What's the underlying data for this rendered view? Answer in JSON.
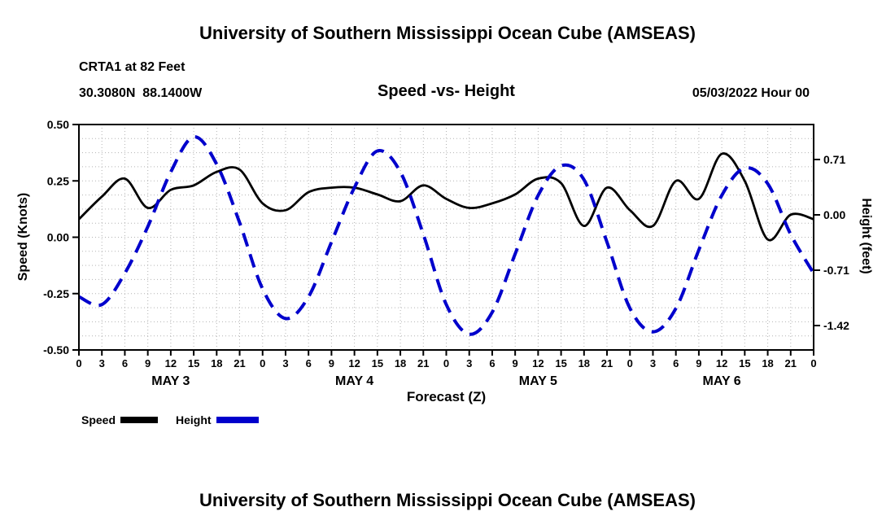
{
  "header": {
    "title": "University of Southern Mississippi Ocean Cube (AMSEAS)",
    "station": "CRTA1 at 82 Feet",
    "coordinates": "30.3080N  88.1400W",
    "subtitle": "Speed -vs- Height",
    "datetime": "05/03/2022 Hour 00"
  },
  "footer": {
    "title": "University of Southern Mississippi Ocean Cube (AMSEAS)"
  },
  "legend": {
    "items": [
      {
        "label": "Speed",
        "color": "#000000"
      },
      {
        "label": "Height",
        "color": "#0000cc"
      }
    ]
  },
  "chart_data": {
    "type": "line",
    "title": "Speed -vs- Height",
    "xlabel": "Forecast (Z)",
    "x_hours": [
      0,
      3,
      6,
      9,
      12,
      15,
      18,
      21,
      24,
      27,
      30,
      33,
      36,
      39,
      42,
      45,
      48,
      51,
      54,
      57,
      60,
      63,
      66,
      69,
      72,
      75,
      78,
      81,
      84,
      87,
      90,
      93,
      96
    ],
    "x_tick_labels": [
      "0",
      "3",
      "6",
      "9",
      "12",
      "15",
      "18",
      "21",
      "0",
      "3",
      "6",
      "9",
      "12",
      "15",
      "18",
      "21",
      "0",
      "3",
      "6",
      "9",
      "12",
      "15",
      "18",
      "21",
      "0",
      "3",
      "6",
      "9",
      "12",
      "15",
      "18",
      "21",
      "0"
    ],
    "day_labels": [
      "MAY 3",
      "MAY 4",
      "MAY 5",
      "MAY 6"
    ],
    "day_center_hours": [
      12,
      36,
      60,
      84
    ],
    "left_axis": {
      "label": "Speed (Knots)",
      "ticks": [
        "0.50",
        "0.25",
        "0.00",
        "-0.25",
        "-0.50"
      ],
      "range": [
        -0.5,
        0.5
      ]
    },
    "right_axis": {
      "label": "Height (feet)",
      "ticks": [
        "0.71",
        "0.00",
        "-0.71",
        "-1.42"
      ],
      "range": [
        -1.733,
        1.159
      ]
    },
    "grid": {
      "color": "#b3b3b3",
      "h_step": 0.0625,
      "v_step_hours": 3
    },
    "series": [
      {
        "name": "Speed",
        "axis": "left",
        "units": "knots",
        "color": "#000000",
        "dash": null,
        "width": 2.8,
        "values": [
          0.08,
          0.18,
          0.26,
          0.13,
          0.21,
          0.23,
          0.29,
          0.3,
          0.15,
          0.12,
          0.2,
          0.22,
          0.22,
          0.19,
          0.16,
          0.23,
          0.17,
          0.13,
          0.15,
          0.19,
          0.26,
          0.24,
          0.05,
          0.22,
          0.12,
          0.05,
          0.25,
          0.17,
          0.37,
          0.25,
          -0.01,
          0.1,
          0.08
        ]
      },
      {
        "name": "Height",
        "axis": "right",
        "units": "feet",
        "color": "#0000cc",
        "dash": "17 10",
        "width": 4,
        "values": [
          -1.05,
          -1.15,
          -0.75,
          -0.15,
          0.55,
          1.0,
          0.65,
          -0.1,
          -0.95,
          -1.33,
          -1.05,
          -0.35,
          0.35,
          0.82,
          0.55,
          -0.25,
          -1.15,
          -1.53,
          -1.25,
          -0.5,
          0.25,
          0.63,
          0.45,
          -0.35,
          -1.2,
          -1.5,
          -1.2,
          -0.45,
          0.25,
          0.6,
          0.4,
          -0.25,
          -0.75
        ]
      }
    ]
  }
}
